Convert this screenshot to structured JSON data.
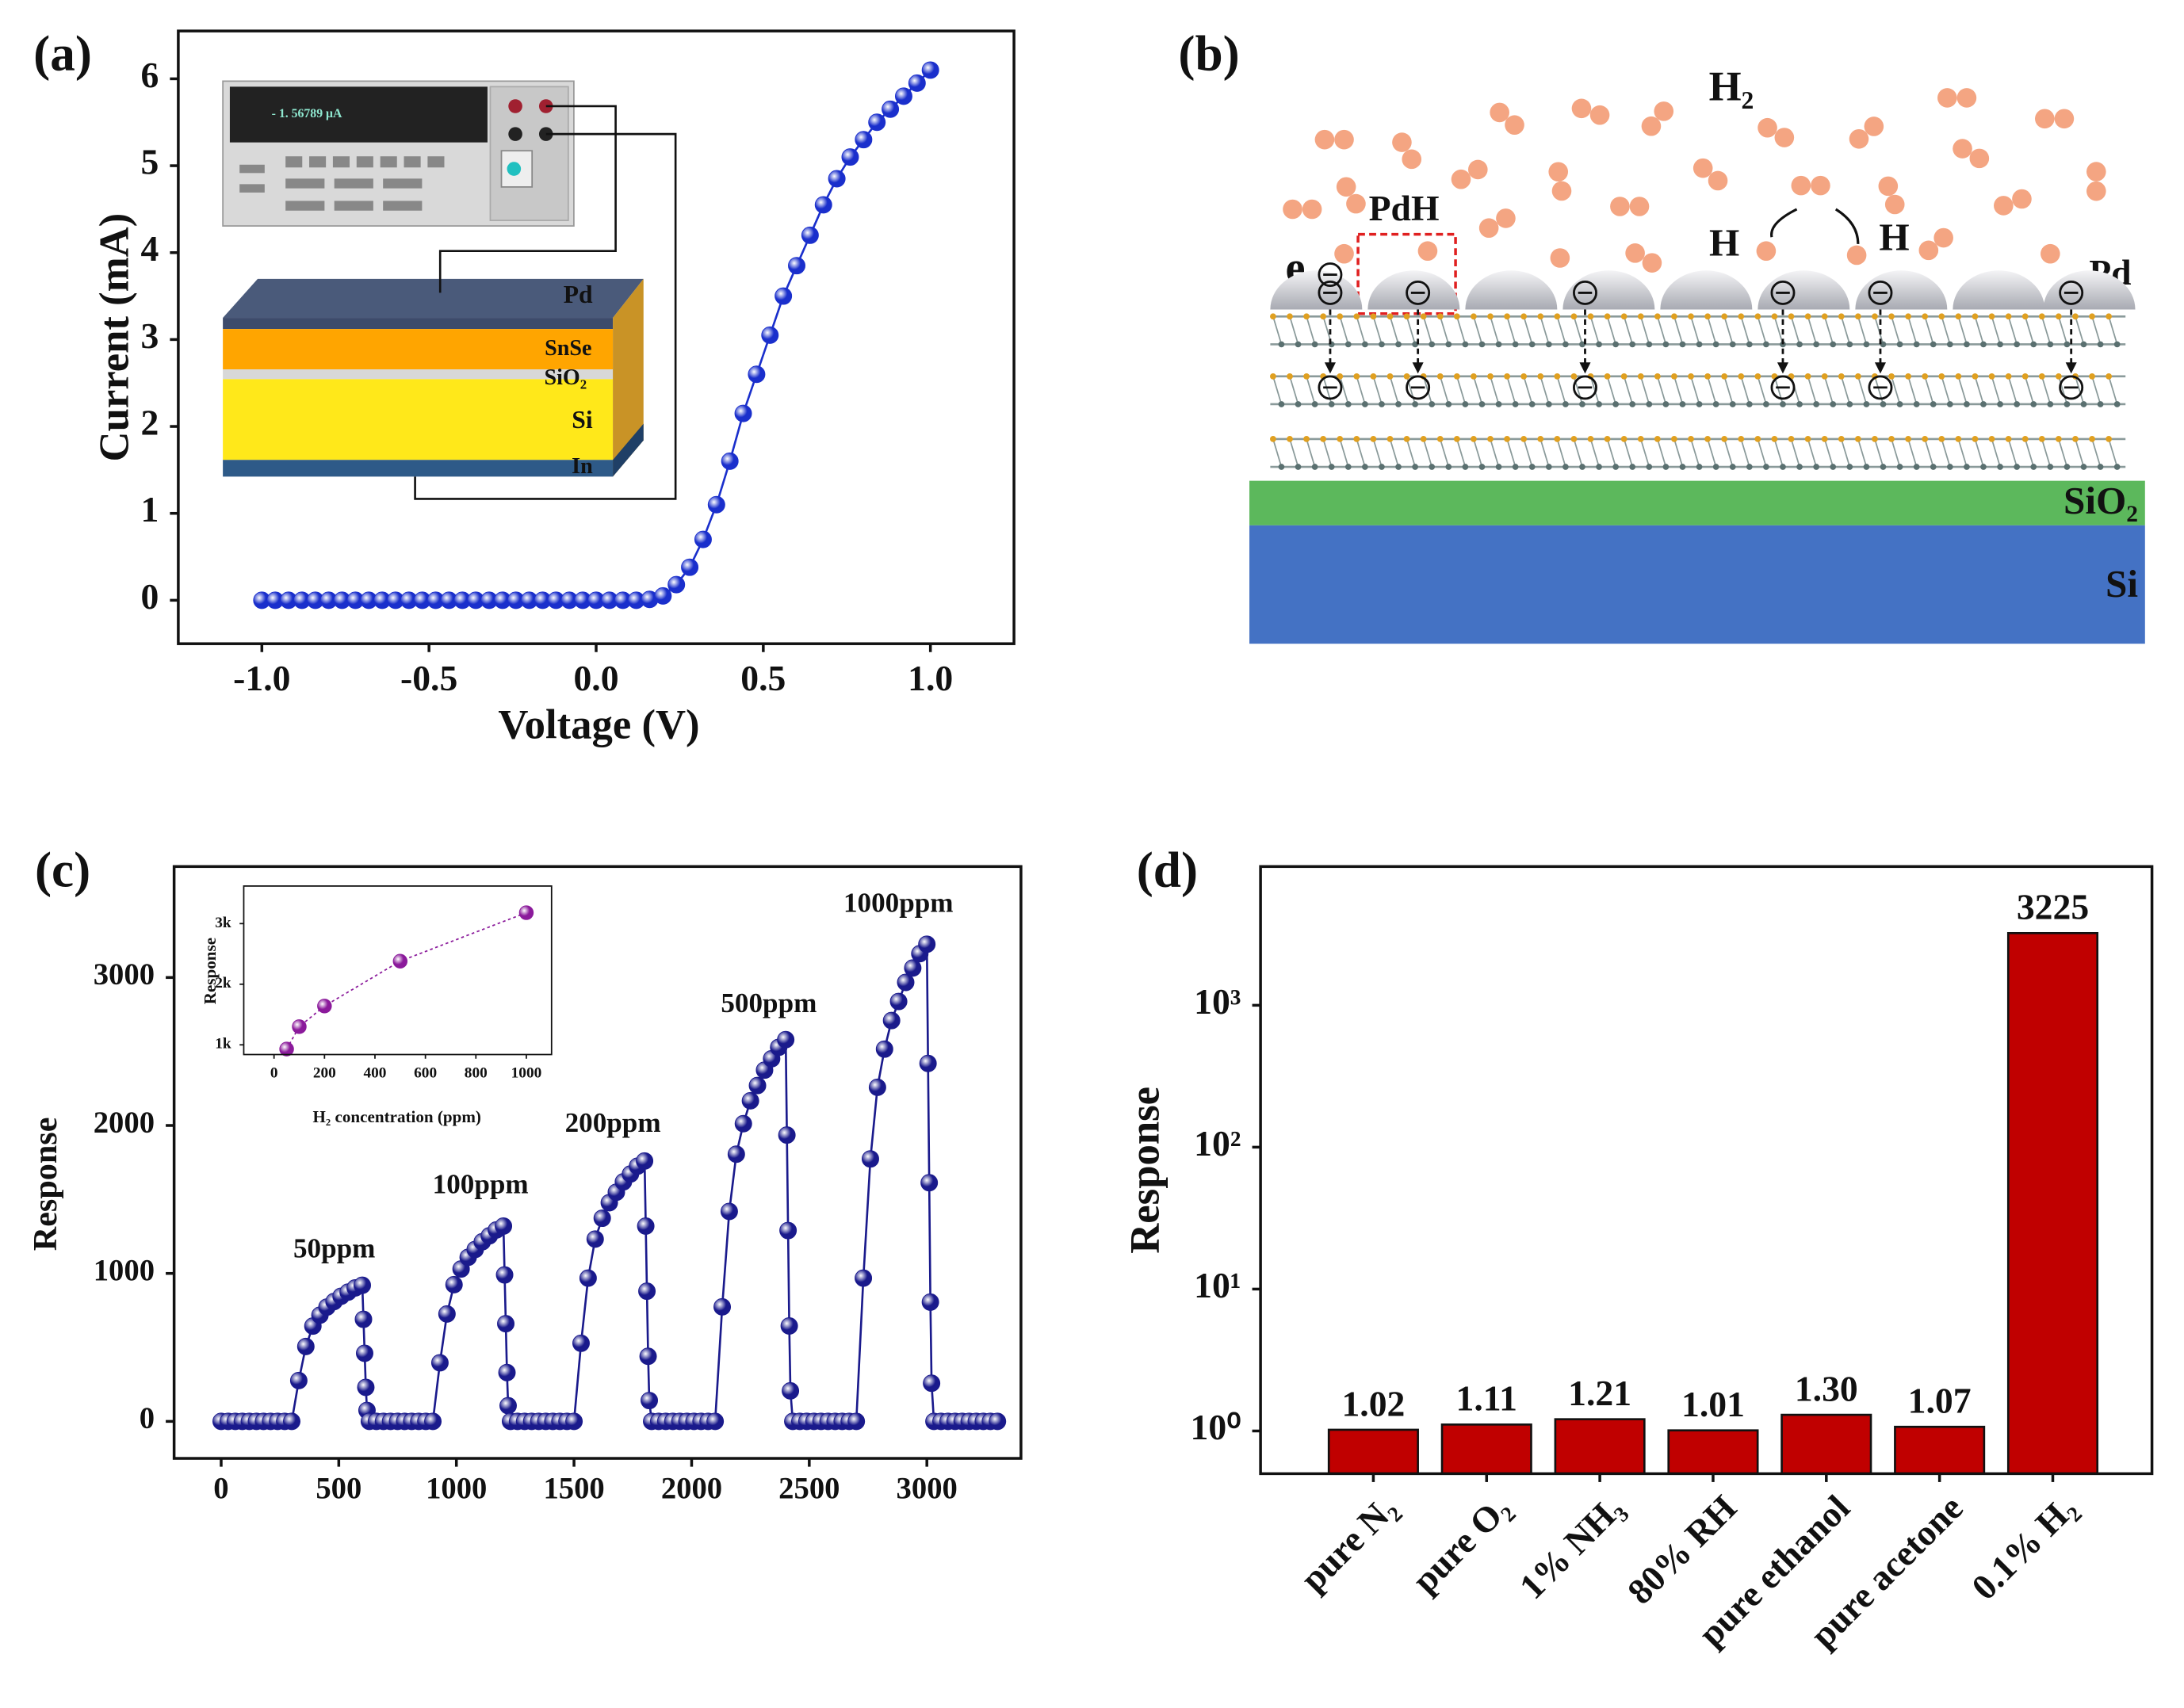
{
  "chart_data": [
    {
      "type": "line",
      "panel_label": "(a)",
      "xlabel": "Voltage (V)",
      "ylabel": "Current (mA)",
      "color": "#1a2fcc",
      "xlim": [
        -1.25,
        1.25
      ],
      "ylim": [
        -0.5,
        6.55
      ],
      "xticks": [
        {
          "value": -1,
          "label": "-1.0"
        },
        -0.5,
        {
          "value": 0,
          "label": "0.0"
        },
        0.5,
        {
          "value": 1,
          "label": "1.0"
        }
      ],
      "yticks": [
        0,
        1,
        2,
        3,
        4,
        5,
        6
      ],
      "x": [
        -1,
        -0.96,
        -0.92,
        -0.88,
        -0.84,
        -0.8,
        -0.76,
        -0.72,
        -0.68,
        -0.64,
        -0.6,
        -0.56,
        -0.52,
        -0.48,
        -0.44,
        -0.4,
        -0.36,
        -0.32,
        -0.28,
        -0.24,
        -0.2,
        -0.16,
        -0.12,
        -0.08,
        -0.04,
        0,
        0.04,
        0.08,
        0.12,
        0.16,
        0.2,
        0.24,
        0.28,
        0.32,
        0.36,
        0.4,
        0.44,
        0.48,
        0.52,
        0.56,
        0.6,
        0.64,
        0.68,
        0.72,
        0.76,
        0.8,
        0.84,
        0.88,
        0.92,
        0.96,
        1
      ],
      "values": [
        0,
        0,
        0,
        0,
        0,
        0,
        0,
        0,
        0,
        0,
        0,
        0,
        0,
        0,
        0,
        0,
        0,
        0,
        0,
        0,
        0,
        0,
        0,
        0,
        0,
        0,
        0,
        0,
        0,
        0.01,
        0.05,
        0.18,
        0.38,
        0.7,
        1.1,
        1.6,
        2.15,
        2.6,
        3.05,
        3.5,
        3.85,
        4.2,
        4.55,
        4.85,
        5.1,
        5.3,
        5.5,
        5.65,
        5.8,
        5.95,
        6.1
      ],
      "inset_labels": [
        "- 1. 56789 μA",
        "Pd",
        "SnSe",
        "SiO₂",
        "Si",
        "In"
      ]
    },
    {
      "type": "line",
      "panel_label": "(c)",
      "ylabel": "Response",
      "color": "#1a1a8c",
      "xlim": [
        -200,
        3400
      ],
      "ylim": [
        -250,
        3750
      ],
      "xticks": [
        0,
        500,
        1000,
        1500,
        2000,
        2500,
        3000
      ],
      "yticks": [
        0,
        1000,
        2000,
        3000
      ],
      "annotations": [
        "50ppm",
        "100ppm",
        "200ppm",
        "500ppm",
        "1000ppm"
      ],
      "x": [
        0,
        30,
        60,
        90,
        120,
        150,
        180,
        210,
        240,
        270,
        300,
        330,
        360,
        390,
        420,
        450,
        480,
        510,
        540,
        570,
        600,
        605,
        610,
        615,
        620,
        630,
        660,
        690,
        720,
        750,
        780,
        810,
        840,
        870,
        900,
        930,
        960,
        990,
        1020,
        1050,
        1080,
        1110,
        1140,
        1170,
        1200,
        1205,
        1210,
        1215,
        1220,
        1230,
        1260,
        1290,
        1320,
        1350,
        1380,
        1410,
        1440,
        1470,
        1500,
        1530,
        1560,
        1590,
        1620,
        1650,
        1680,
        1710,
        1740,
        1770,
        1800,
        1805,
        1810,
        1815,
        1820,
        1830,
        1860,
        1890,
        1920,
        1950,
        1980,
        2010,
        2040,
        2070,
        2100,
        2130,
        2160,
        2190,
        2220,
        2250,
        2280,
        2310,
        2340,
        2370,
        2400,
        2405,
        2410,
        2415,
        2420,
        2430,
        2460,
        2490,
        2520,
        2550,
        2580,
        2610,
        2640,
        2670,
        2700,
        2730,
        2760,
        2790,
        2820,
        2850,
        2880,
        2910,
        2940,
        2970,
        3000,
        3005,
        3010,
        3015,
        3020,
        3030,
        3060,
        3090,
        3120,
        3150,
        3180,
        3210,
        3240,
        3270,
        3300
      ],
      "values": [
        0,
        0,
        0,
        0,
        0,
        0,
        0,
        0,
        0,
        0,
        0,
        276,
        506,
        644,
        718,
        773,
        810,
        846,
        874,
        902,
        920,
        690,
        460,
        230,
        74,
        0,
        0,
        0,
        0,
        0,
        0,
        0,
        0,
        0,
        0,
        396,
        726,
        924,
        1030,
        1109,
        1162,
        1214,
        1254,
        1294,
        1320,
        990,
        660,
        330,
        106,
        0,
        0,
        0,
        0,
        0,
        0,
        0,
        0,
        0,
        0,
        528,
        968,
        1232,
        1373,
        1478,
        1549,
        1619,
        1672,
        1725,
        1760,
        1320,
        880,
        440,
        141,
        0,
        0,
        0,
        0,
        0,
        0,
        0,
        0,
        0,
        0,
        774,
        1419,
        1806,
        2012,
        2167,
        2270,
        2374,
        2451,
        2528,
        2580,
        1935,
        1290,
        645,
        206,
        0,
        0,
        0,
        0,
        0,
        0,
        0,
        0,
        0,
        0,
        968,
        1774,
        2258,
        2516,
        2709,
        2838,
        2967,
        3064,
        3161,
        3225,
        2419,
        1613,
        806,
        258,
        0,
        0,
        0,
        0,
        0,
        0,
        0,
        0,
        0,
        0
      ]
    },
    {
      "type": "line",
      "linestyle": "dotted",
      "xlabel": "H₂ concentration (ppm)",
      "ylabel": "Response",
      "color": "#8b1a9b",
      "xlim": [
        -120,
        1100
      ],
      "ylim": [
        840,
        3620
      ],
      "xticks": [
        0,
        200,
        400,
        600,
        800,
        1000
      ],
      "yticks": [
        {
          "value": 1000,
          "label": "1k"
        },
        {
          "value": 2000,
          "label": "2k"
        },
        {
          "value": 3000,
          "label": "3k"
        }
      ],
      "x": [
        50,
        100,
        200,
        500,
        1000
      ],
      "values": [
        930,
        1300,
        1640,
        2380,
        3180
      ]
    },
    {
      "type": "bar",
      "panel_label": "(d)",
      "ylabel": "Response",
      "color": "#c00000",
      "log_y": true,
      "ylim": [
        0.5,
        9500
      ],
      "yticks": [
        {
          "value": 1,
          "label": "10⁰"
        },
        {
          "value": 10,
          "label": "10¹"
        },
        {
          "value": 100,
          "label": "10²"
        },
        {
          "value": 1000,
          "label": "10³"
        }
      ],
      "categories": [
        "pure N₂",
        "pure O₂",
        "1% NH₃",
        "80% RH",
        "pure ethanol",
        "pure acetone",
        "0.1% H₂"
      ],
      "values": [
        1.02,
        1.11,
        1.21,
        1.01,
        1.3,
        1.07,
        3225
      ],
      "value_labels": [
        "1.02",
        "1.11",
        "1.21",
        "1.01",
        "1.30",
        "1.07",
        "3225"
      ]
    }
  ],
  "diagram": {
    "panel_label": "(b)",
    "labels": [
      "H₂",
      "PdH",
      "e",
      "H",
      "H",
      "Pd",
      "SiO₂",
      "Si"
    ]
  }
}
